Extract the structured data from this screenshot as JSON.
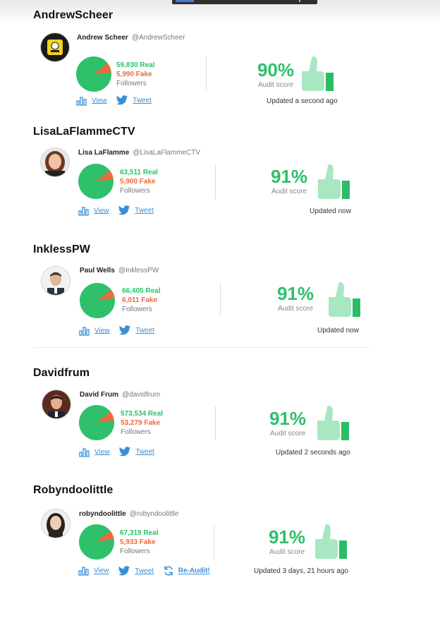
{
  "colors": {
    "real": "#2ec06a",
    "fake": "#ef6a3c",
    "link": "#3a8fd6",
    "thumb_light": "#a8e7c2",
    "thumb_dark": "#2cbc66"
  },
  "icons": {
    "view": "bar-chart-icon",
    "tweet": "twitter-bird-icon",
    "reaudit": "refresh-icon",
    "score": "thumbs-up-icon"
  },
  "cards": [
    {
      "heading": "AndrewScheer",
      "name": "Andrew Scheer",
      "handle": "@AndrewScheer",
      "real": "59,830 Real",
      "fake": "5,990 Fake",
      "followers": "Followers",
      "score": "90%",
      "score_label": "Audit score",
      "updated": "Updated a second ago",
      "view": "View",
      "tweet": "Tweet",
      "reaudit": null,
      "fake_fraction": 0.091
    },
    {
      "heading": "LisaLaFlammeCTV",
      "name": "Lisa LaFlamme",
      "handle": "@LisaLaFlammeCTV",
      "real": "63,511 Real",
      "fake": "5,900 Fake",
      "followers": "Followers",
      "score": "91%",
      "score_label": "Audit score",
      "updated": "Updated now",
      "view": "View",
      "tweet": "Tweet",
      "reaudit": null,
      "fake_fraction": 0.085
    },
    {
      "heading": "InklessPW",
      "name": "Paul Wells",
      "handle": "@InklessPW",
      "real": "66,405 Real",
      "fake": "6,011 Fake",
      "followers": "Followers",
      "score": "91%",
      "score_label": "Audit score",
      "updated": "Updated now",
      "view": "View",
      "tweet": "Tweet",
      "reaudit": null,
      "fake_fraction": 0.083
    },
    {
      "heading": "Davidfrum",
      "name": "David Frum",
      "handle": "@davidfrum",
      "real": "573,534 Real",
      "fake": "53,279 Fake",
      "followers": "Followers",
      "score": "91%",
      "score_label": "Audit score",
      "updated": "Updated 2 seconds ago",
      "view": "View",
      "tweet": "Tweet",
      "reaudit": null,
      "fake_fraction": 0.085
    },
    {
      "heading": "Robyndoolittle",
      "name": "robyndoolittle",
      "handle": "@robyndoolittle",
      "real": "67,319 Real",
      "fake": "5,933 Fake",
      "followers": "Followers",
      "score": "91%",
      "score_label": "Audit score",
      "updated": "Updated 3 days, 21 hours ago",
      "view": "View",
      "tweet": "Tweet",
      "reaudit": "Re-Audit!",
      "fake_fraction": 0.081
    }
  ]
}
